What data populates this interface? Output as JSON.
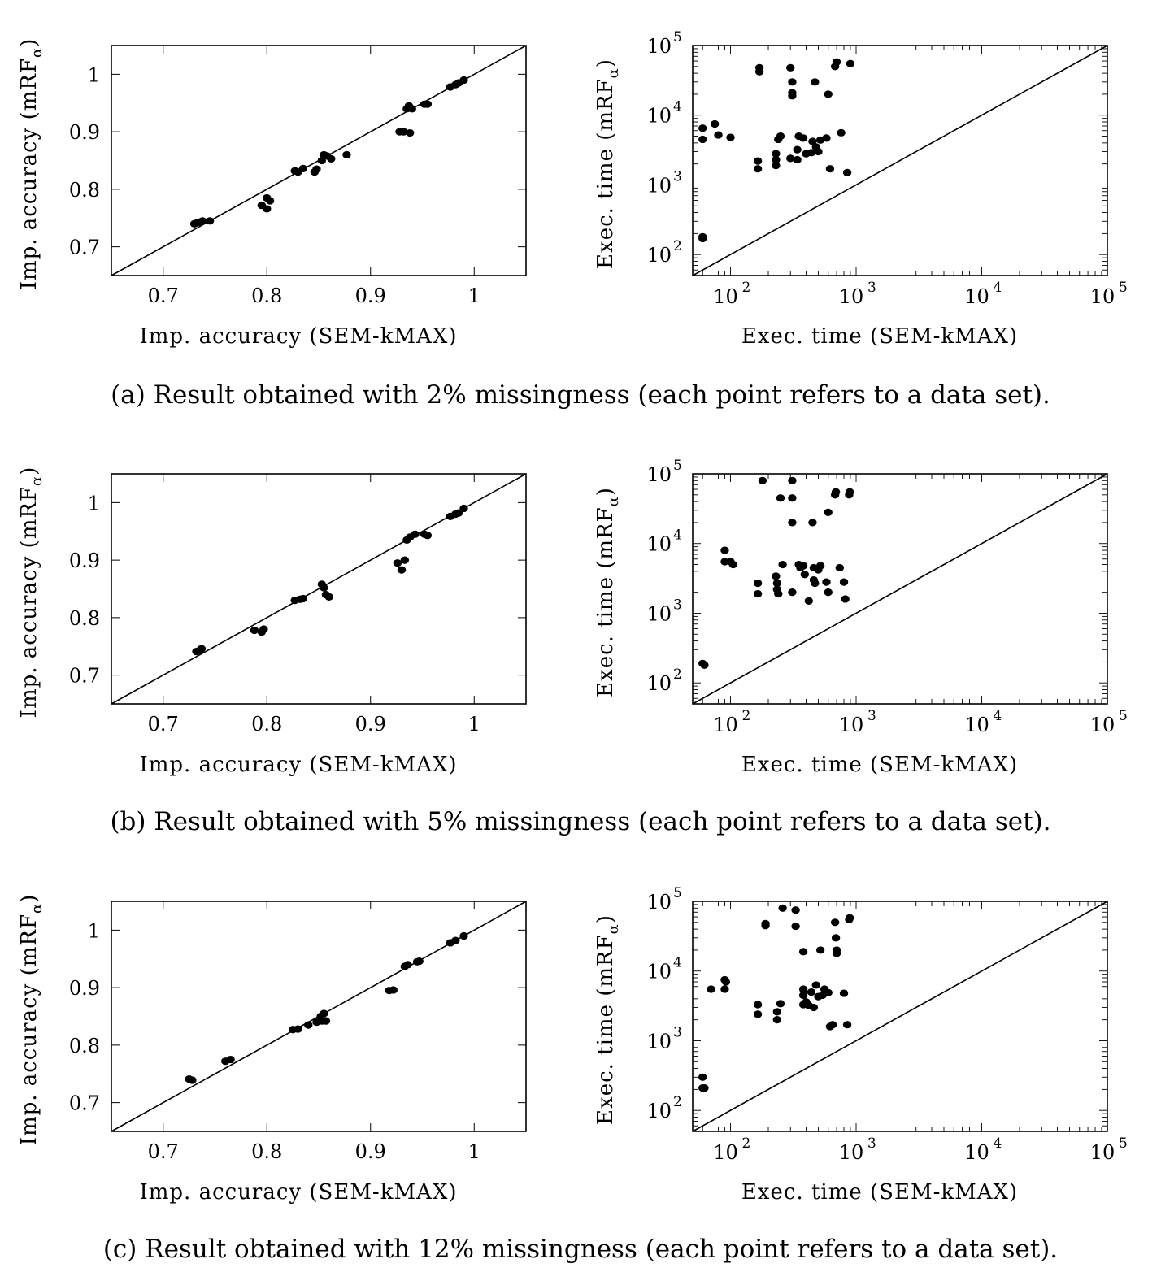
{
  "panels": [
    {
      "caption": "(a) Result obtained with 2% missingness (each point refers to a data set).",
      "accuracy_chart": {
        "xlabel": "Imp. accuracy (SEM-kMAX)",
        "ylabel": "Imp. accuracy (mRF",
        "ylabel_sub": "α",
        "ylabel_close": ")",
        "xticks": [
          "0.7",
          "0.8",
          "0.9",
          "1"
        ],
        "yticks": [
          "0.7",
          "0.8",
          "0.9",
          "1"
        ]
      },
      "time_chart": {
        "xlabel": "Exec. time (SEM-kMAX)",
        "ylabel": "Exec. time (mRF",
        "ylabel_sub": "α",
        "ylabel_close": ")"
      }
    },
    {
      "caption": "(b) Result obtained with 5% missingness (each point refers to a data set).",
      "accuracy_chart": {
        "xlabel": "Imp. accuracy (SEM-kMAX)",
        "ylabel": "Imp. accuracy (mRF",
        "ylabel_sub": "α",
        "ylabel_close": ")",
        "xticks": [
          "0.7",
          "0.8",
          "0.9",
          "1"
        ],
        "yticks": [
          "0.7",
          "0.8",
          "0.9",
          "1"
        ]
      },
      "time_chart": {
        "xlabel": "Exec. time (SEM-kMAX)",
        "ylabel": "Exec. time (mRF",
        "ylabel_sub": "α",
        "ylabel_close": ")"
      }
    },
    {
      "caption": "(c) Result obtained with 12% missingness (each point refers to a data set).",
      "accuracy_chart": {
        "xlabel": "Imp. accuracy (SEM-kMAX)",
        "ylabel": "Imp. accuracy (mRF",
        "ylabel_sub": "α",
        "ylabel_close": ")",
        "xticks": [
          "0.7",
          "0.8",
          "0.9",
          "1"
        ],
        "yticks": [
          "0.7",
          "0.8",
          "0.9",
          "1"
        ]
      },
      "time_chart": {
        "xlabel": "Exec. time (SEM-kMAX)",
        "ylabel": "Exec. time (mRF",
        "ylabel_sub": "α",
        "ylabel_close": ")"
      }
    }
  ],
  "chart_data": [
    {
      "type": "scatter",
      "title": "",
      "xlabel": "Imp. accuracy (SEM-kMAX)",
      "ylabel": "Imp. accuracy (mRFα)",
      "xlim": [
        0.65,
        1.05
      ],
      "ylim": [
        0.65,
        1.05
      ],
      "xscale": "linear",
      "yscale": "linear",
      "diagonal": "y = x",
      "grid": false,
      "points": [
        [
          0.73,
          0.74
        ],
        [
          0.733,
          0.742
        ],
        [
          0.735,
          0.743
        ],
        [
          0.738,
          0.745
        ],
        [
          0.745,
          0.745
        ],
        [
          0.795,
          0.772
        ],
        [
          0.8,
          0.785
        ],
        [
          0.8,
          0.766
        ],
        [
          0.803,
          0.78
        ],
        [
          0.827,
          0.832
        ],
        [
          0.83,
          0.83
        ],
        [
          0.835,
          0.836
        ],
        [
          0.846,
          0.83
        ],
        [
          0.848,
          0.835
        ],
        [
          0.853,
          0.85
        ],
        [
          0.855,
          0.86
        ],
        [
          0.858,
          0.858
        ],
        [
          0.862,
          0.853
        ],
        [
          0.877,
          0.86
        ],
        [
          0.928,
          0.9
        ],
        [
          0.932,
          0.9
        ],
        [
          0.935,
          0.94
        ],
        [
          0.937,
          0.945
        ],
        [
          0.938,
          0.898
        ],
        [
          0.94,
          0.94
        ],
        [
          0.952,
          0.948
        ],
        [
          0.955,
          0.948
        ],
        [
          0.977,
          0.978
        ],
        [
          0.982,
          0.982
        ],
        [
          0.985,
          0.985
        ],
        [
          0.99,
          0.99
        ]
      ]
    },
    {
      "type": "scatter",
      "title": "",
      "xlabel": "Exec. time (SEM-kMAX)",
      "ylabel": "Exec. time (mRFα)",
      "xlim": [
        50,
        100000
      ],
      "ylim": [
        50,
        100000
      ],
      "xscale": "log",
      "yscale": "log",
      "xticks": [
        100,
        1000,
        10000,
        100000
      ],
      "yticks": [
        100,
        1000,
        10000,
        100000
      ],
      "diagonal": "y = x",
      "grid": false,
      "points": [
        [
          60,
          4500
        ],
        [
          60,
          6500
        ],
        [
          60,
          170
        ],
        [
          60,
          180
        ],
        [
          75,
          7500
        ],
        [
          80,
          5200
        ],
        [
          100,
          4800
        ],
        [
          165,
          2200
        ],
        [
          165,
          1700
        ],
        [
          170,
          42000
        ],
        [
          170,
          48000
        ],
        [
          230,
          2800
        ],
        [
          230,
          2300
        ],
        [
          230,
          1900
        ],
        [
          240,
          4500
        ],
        [
          250,
          5000
        ],
        [
          300,
          48000
        ],
        [
          310,
          30000
        ],
        [
          310,
          21000
        ],
        [
          310,
          19000
        ],
        [
          300,
          2400
        ],
        [
          340,
          2300
        ],
        [
          340,
          3200
        ],
        [
          350,
          5000
        ],
        [
          380,
          4700
        ],
        [
          400,
          2800
        ],
        [
          440,
          2900
        ],
        [
          450,
          4200
        ],
        [
          470,
          30000
        ],
        [
          480,
          3500
        ],
        [
          500,
          3000
        ],
        [
          520,
          4400
        ],
        [
          580,
          4700
        ],
        [
          600,
          20000
        ],
        [
          620,
          1700
        ],
        [
          680,
          50000
        ],
        [
          700,
          58000
        ],
        [
          760,
          5600
        ],
        [
          850,
          1500
        ],
        [
          900,
          55000
        ]
      ]
    },
    {
      "type": "scatter",
      "title": "",
      "xlabel": "Imp. accuracy (SEM-kMAX)",
      "ylabel": "Imp. accuracy (mRFα)",
      "xlim": [
        0.65,
        1.05
      ],
      "ylim": [
        0.65,
        1.05
      ],
      "xscale": "linear",
      "yscale": "linear",
      "diagonal": "y = x",
      "grid": false,
      "points": [
        [
          0.732,
          0.741
        ],
        [
          0.735,
          0.743
        ],
        [
          0.737,
          0.746
        ],
        [
          0.788,
          0.778
        ],
        [
          0.795,
          0.775
        ],
        [
          0.797,
          0.78
        ],
        [
          0.827,
          0.83
        ],
        [
          0.832,
          0.832
        ],
        [
          0.835,
          0.833
        ],
        [
          0.853,
          0.858
        ],
        [
          0.855,
          0.852
        ],
        [
          0.857,
          0.84
        ],
        [
          0.86,
          0.836
        ],
        [
          0.926,
          0.895
        ],
        [
          0.93,
          0.883
        ],
        [
          0.933,
          0.9
        ],
        [
          0.935,
          0.935
        ],
        [
          0.938,
          0.94
        ],
        [
          0.943,
          0.945
        ],
        [
          0.952,
          0.945
        ],
        [
          0.955,
          0.943
        ],
        [
          0.977,
          0.976
        ],
        [
          0.982,
          0.98
        ],
        [
          0.985,
          0.982
        ],
        [
          0.99,
          0.99
        ]
      ]
    },
    {
      "type": "scatter",
      "title": "",
      "xlabel": "Exec. time (SEM-kMAX)",
      "ylabel": "Exec. time (mRFα)",
      "xlim": [
        50,
        100000
      ],
      "ylim": [
        50,
        100000
      ],
      "xscale": "log",
      "yscale": "log",
      "xticks": [
        100,
        1000,
        10000,
        100000
      ],
      "yticks": [
        100,
        1000,
        10000,
        100000
      ],
      "diagonal": "y = x",
      "grid": false,
      "points": [
        [
          60,
          190
        ],
        [
          62,
          180
        ],
        [
          90,
          8000
        ],
        [
          90,
          5500
        ],
        [
          100,
          5500
        ],
        [
          105,
          5000
        ],
        [
          165,
          2700
        ],
        [
          165,
          1900
        ],
        [
          180,
          80000
        ],
        [
          230,
          3400
        ],
        [
          235,
          2700
        ],
        [
          235,
          2200
        ],
        [
          240,
          1900
        ],
        [
          250,
          45000
        ],
        [
          260,
          5000
        ],
        [
          310,
          80000
        ],
        [
          310,
          45000
        ],
        [
          310,
          20000
        ],
        [
          310,
          2000
        ],
        [
          350,
          5000
        ],
        [
          360,
          4500
        ],
        [
          380,
          4800
        ],
        [
          390,
          3600
        ],
        [
          420,
          1500
        ],
        [
          450,
          20000
        ],
        [
          460,
          4500
        ],
        [
          460,
          3000
        ],
        [
          470,
          2700
        ],
        [
          500,
          4200
        ],
        [
          520,
          4800
        ],
        [
          580,
          2800
        ],
        [
          600,
          2000
        ],
        [
          600,
          28000
        ],
        [
          680,
          50000
        ],
        [
          690,
          55000
        ],
        [
          740,
          4500
        ],
        [
          800,
          2800
        ],
        [
          820,
          1600
        ],
        [
          880,
          50000
        ],
        [
          890,
          55000
        ]
      ]
    },
    {
      "type": "scatter",
      "title": "",
      "xlabel": "Imp. accuracy (SEM-kMAX)",
      "ylabel": "Imp. accuracy (mRFα)",
      "xlim": [
        0.65,
        1.05
      ],
      "ylim": [
        0.65,
        1.05
      ],
      "xscale": "linear",
      "yscale": "linear",
      "diagonal": "y = x",
      "grid": false,
      "points": [
        [
          0.725,
          0.741
        ],
        [
          0.728,
          0.739
        ],
        [
          0.76,
          0.772
        ],
        [
          0.765,
          0.775
        ],
        [
          0.825,
          0.827
        ],
        [
          0.83,
          0.828
        ],
        [
          0.84,
          0.835
        ],
        [
          0.848,
          0.84
        ],
        [
          0.852,
          0.85
        ],
        [
          0.855,
          0.855
        ],
        [
          0.853,
          0.842
        ],
        [
          0.857,
          0.842
        ],
        [
          0.918,
          0.895
        ],
        [
          0.922,
          0.896
        ],
        [
          0.933,
          0.937
        ],
        [
          0.936,
          0.94
        ],
        [
          0.945,
          0.945
        ],
        [
          0.947,
          0.946
        ],
        [
          0.977,
          0.978
        ],
        [
          0.982,
          0.982
        ],
        [
          0.99,
          0.99
        ]
      ]
    },
    {
      "type": "scatter",
      "title": "",
      "xlabel": "Exec. time (SEM-kMAX)",
      "ylabel": "Exec. time (mRFα)",
      "xlim": [
        50,
        100000
      ],
      "ylim": [
        50,
        100000
      ],
      "xscale": "log",
      "yscale": "log",
      "xticks": [
        100,
        1000,
        10000,
        100000
      ],
      "yticks": [
        100,
        1000,
        10000,
        100000
      ],
      "diagonal": "y = x",
      "grid": false,
      "points": [
        [
          60,
          300
        ],
        [
          60,
          210
        ],
        [
          62,
          210
        ],
        [
          70,
          5500
        ],
        [
          90,
          7500
        ],
        [
          90,
          5500
        ],
        [
          92,
          7000
        ],
        [
          165,
          3300
        ],
        [
          165,
          2400
        ],
        [
          190,
          45000
        ],
        [
          190,
          48000
        ],
        [
          235,
          2600
        ],
        [
          235,
          2000
        ],
        [
          250,
          3400
        ],
        [
          260,
          80000
        ],
        [
          330,
          75000
        ],
        [
          330,
          44000
        ],
        [
          380,
          19000
        ],
        [
          380,
          5500
        ],
        [
          380,
          4500
        ],
        [
          380,
          3300
        ],
        [
          400,
          3600
        ],
        [
          420,
          3200
        ],
        [
          440,
          5000
        ],
        [
          460,
          3000
        ],
        [
          480,
          6300
        ],
        [
          500,
          4300
        ],
        [
          520,
          20000
        ],
        [
          540,
          4500
        ],
        [
          560,
          5500
        ],
        [
          600,
          4900
        ],
        [
          620,
          1600
        ],
        [
          650,
          1700
        ],
        [
          680,
          50000
        ],
        [
          690,
          30000
        ],
        [
          700,
          20000
        ],
        [
          700,
          18000
        ],
        [
          800,
          4800
        ],
        [
          850,
          1700
        ],
        [
          880,
          55000
        ],
        [
          890,
          58000
        ]
      ]
    }
  ]
}
